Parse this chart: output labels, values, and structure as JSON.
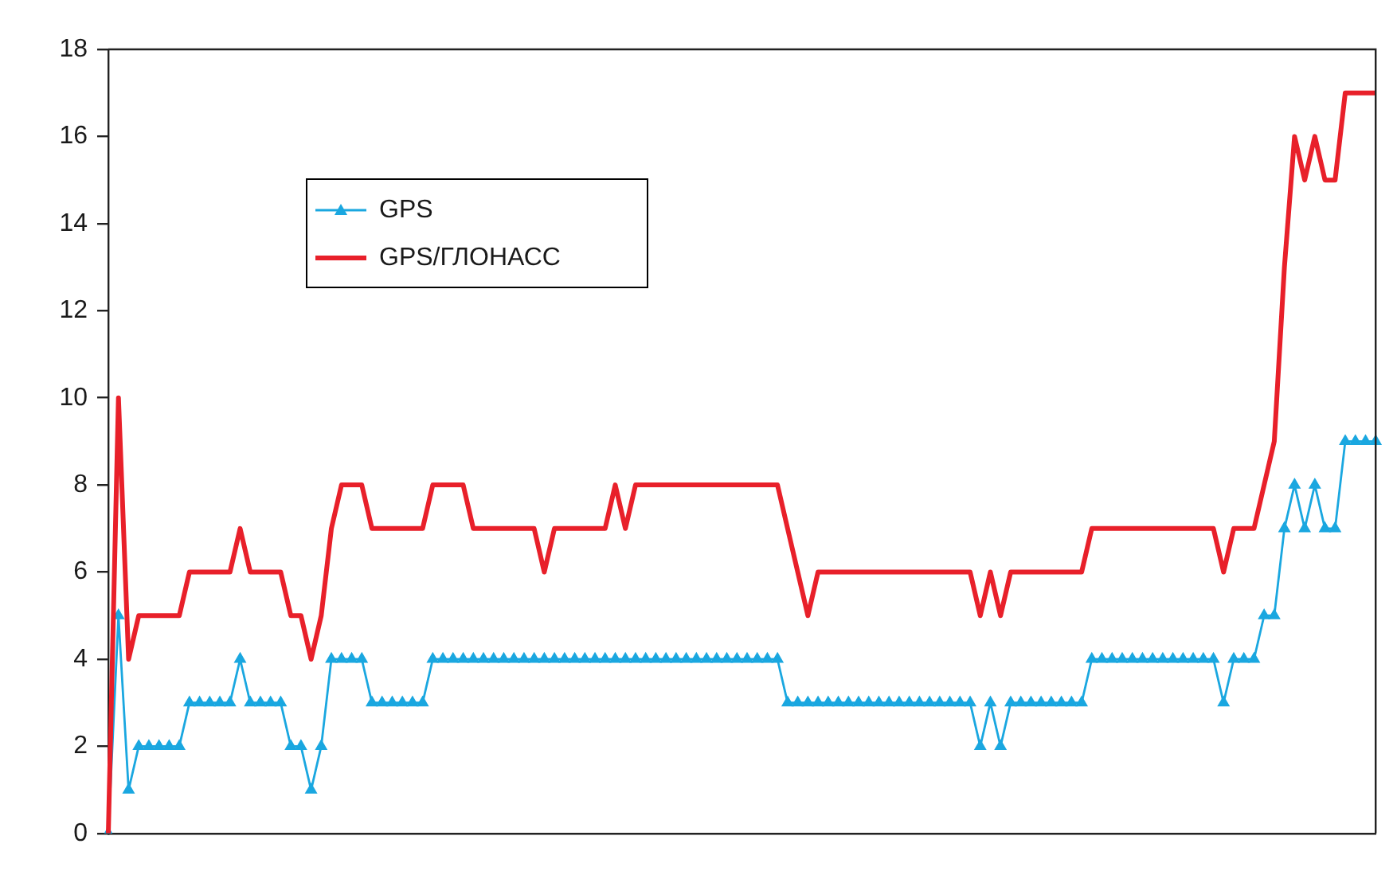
{
  "chart_data": {
    "type": "line",
    "categories": [
      null,
      null,
      null,
      null,
      null,
      null,
      null,
      null,
      null,
      null,
      null,
      null,
      null,
      null,
      null,
      null,
      null,
      null,
      null,
      null,
      null,
      null,
      null,
      null,
      null,
      null,
      null,
      null,
      null,
      null,
      null,
      null,
      null,
      null,
      null,
      null,
      null,
      null,
      null,
      null,
      null,
      null,
      null,
      null,
      null,
      null,
      null,
      null,
      null,
      null,
      null,
      null,
      null,
      null,
      null,
      null,
      null,
      null,
      null,
      null,
      null,
      null,
      null,
      null,
      null,
      null,
      null,
      null,
      null,
      null,
      null,
      null,
      null,
      null,
      null,
      null,
      null,
      null,
      null,
      null,
      null,
      null,
      null,
      null,
      null,
      null,
      null,
      null,
      null,
      null,
      null,
      null,
      null,
      null,
      null,
      null,
      null,
      null,
      null,
      null,
      null,
      null,
      null,
      null,
      null,
      null,
      null,
      null,
      null,
      null,
      null,
      null,
      null,
      null,
      null,
      null,
      null,
      null,
      null,
      null,
      null,
      null,
      null,
      null,
      null,
      null
    ],
    "series": [
      {
        "name": "GPS",
        "color": "#1aa7e0",
        "marker": "triangle",
        "values": [
          0,
          5,
          1,
          2,
          2,
          2,
          2,
          2,
          3,
          3,
          3,
          3,
          3,
          4,
          3,
          3,
          3,
          3,
          2,
          2,
          1,
          2,
          4,
          4,
          4,
          4,
          3,
          3,
          3,
          3,
          3,
          3,
          4,
          4,
          4,
          4,
          4,
          4,
          4,
          4,
          4,
          4,
          4,
          4,
          4,
          4,
          4,
          4,
          4,
          4,
          4,
          4,
          4,
          4,
          4,
          4,
          4,
          4,
          4,
          4,
          4,
          4,
          4,
          4,
          4,
          4,
          4,
          3,
          3,
          3,
          3,
          3,
          3,
          3,
          3,
          3,
          3,
          3,
          3,
          3,
          3,
          3,
          3,
          3,
          3,
          3,
          2,
          3,
          2,
          3,
          3,
          3,
          3,
          3,
          3,
          3,
          3,
          4,
          4,
          4,
          4,
          4,
          4,
          4,
          4,
          4,
          4,
          4,
          4,
          4,
          3,
          4,
          4,
          4,
          5,
          5,
          7,
          8,
          7,
          8,
          7,
          7,
          9,
          9,
          9,
          9
        ]
      },
      {
        "name": "GPS/ГЛОНАСС",
        "color": "#e8202a",
        "marker": "none",
        "values": [
          0,
          10,
          4,
          5,
          5,
          5,
          5,
          5,
          6,
          6,
          6,
          6,
          6,
          7,
          6,
          6,
          6,
          6,
          5,
          5,
          4,
          5,
          7,
          8,
          8,
          8,
          7,
          7,
          7,
          7,
          7,
          7,
          8,
          8,
          8,
          8,
          7,
          7,
          7,
          7,
          7,
          7,
          7,
          6,
          7,
          7,
          7,
          7,
          7,
          7,
          8,
          7,
          8,
          8,
          8,
          8,
          8,
          8,
          8,
          8,
          8,
          8,
          8,
          8,
          8,
          8,
          8,
          7,
          6,
          5,
          6,
          6,
          6,
          6,
          6,
          6,
          6,
          6,
          6,
          6,
          6,
          6,
          6,
          6,
          6,
          6,
          5,
          6,
          5,
          6,
          6,
          6,
          6,
          6,
          6,
          6,
          6,
          7,
          7,
          7,
          7,
          7,
          7,
          7,
          7,
          7,
          7,
          7,
          7,
          7,
          6,
          7,
          7,
          7,
          8,
          9,
          13,
          16,
          15,
          16,
          15,
          15,
          17,
          17,
          17,
          17
        ]
      }
    ],
    "ylim": [
      0,
      18
    ],
    "yticks": [
      0,
      2,
      4,
      6,
      8,
      10,
      12,
      14,
      16,
      18
    ],
    "grid": false,
    "legend": "top left",
    "tick_labels": "y"
  }
}
